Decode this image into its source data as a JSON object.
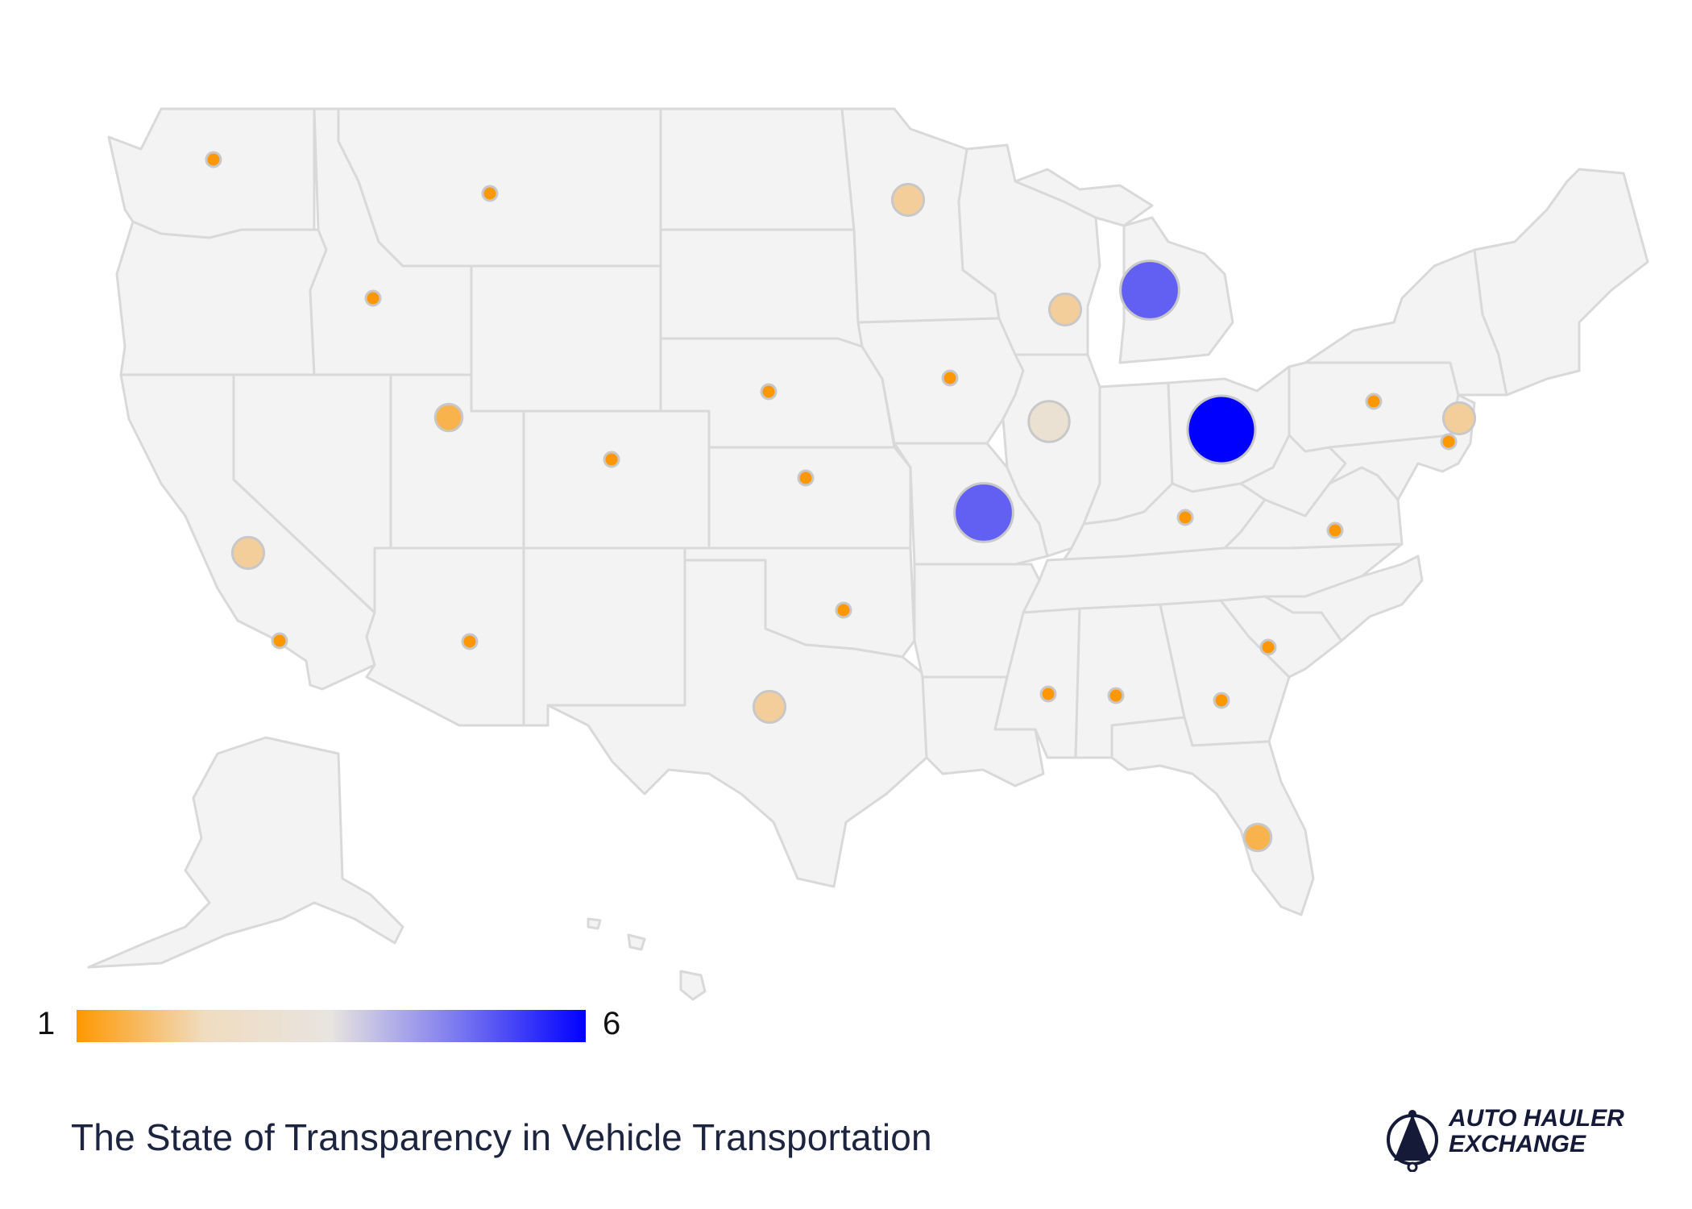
{
  "title": "The State of Transparency in Vehicle Transportation",
  "brand": {
    "line1": "AUTO HAULER",
    "line2": "EXCHANGE",
    "icon": "auto-hauler-logo-icon"
  },
  "legend": {
    "min_label": "1",
    "max_label": "6",
    "min": 1,
    "max": 6,
    "colors": [
      "#ff9800",
      "#f0dcc0",
      "#e8e4e0",
      "#7a78f0",
      "#0000ff"
    ]
  },
  "map_data": {
    "type": "bubble-map",
    "region": "United States",
    "scale": "value 1 (orange, small) to 6 (blue, large)",
    "points": [
      {
        "state": "Washington",
        "value": 1
      },
      {
        "state": "Montana",
        "value": 1
      },
      {
        "state": "Idaho",
        "value": 1
      },
      {
        "state": "Utah",
        "value": 1.5
      },
      {
        "state": "California (north)",
        "value": 2
      },
      {
        "state": "California (south)",
        "value": 1
      },
      {
        "state": "Arizona",
        "value": 1
      },
      {
        "state": "Colorado",
        "value": 1
      },
      {
        "state": "Nebraska",
        "value": 1
      },
      {
        "state": "Kansas",
        "value": 1
      },
      {
        "state": "Oklahoma",
        "value": 1
      },
      {
        "state": "Texas",
        "value": 2
      },
      {
        "state": "Minnesota",
        "value": 2
      },
      {
        "state": "Iowa",
        "value": 1
      },
      {
        "state": "Missouri",
        "value": 5
      },
      {
        "state": "Wisconsin",
        "value": 2
      },
      {
        "state": "Illinois",
        "value": 3
      },
      {
        "state": "Michigan",
        "value": 5
      },
      {
        "state": "Ohio",
        "value": 6
      },
      {
        "state": "Kentucky",
        "value": 1
      },
      {
        "state": "Pennsylvania",
        "value": 1
      },
      {
        "state": "New York",
        "value": 2
      },
      {
        "state": "New Jersey",
        "value": 1
      },
      {
        "state": "Virginia",
        "value": 1
      },
      {
        "state": "South Carolina",
        "value": 1
      },
      {
        "state": "Georgia",
        "value": 1
      },
      {
        "state": "Alabama",
        "value": 1
      },
      {
        "state": "Mississippi",
        "value": 1
      },
      {
        "state": "Florida",
        "value": 1.5
      }
    ]
  }
}
